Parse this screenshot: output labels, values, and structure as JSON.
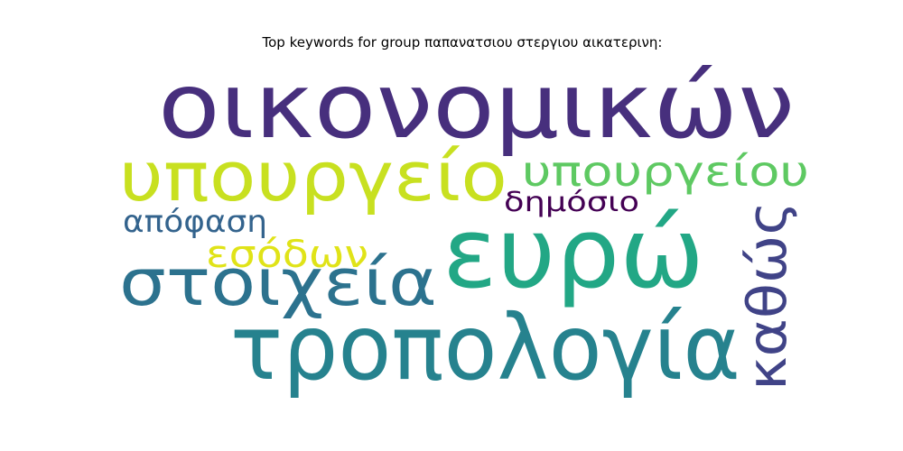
{
  "chart_data": {
    "type": "wordcloud",
    "title": "Top keywords for group παπανατσιου στεργιου αικατερινη:",
    "words": [
      {
        "text": "οικονομικών",
        "weight": 1.0,
        "color": "#472f7d"
      },
      {
        "text": "ευρώ",
        "weight": 0.9,
        "color": "#22a785"
      },
      {
        "text": "τροπολογία",
        "weight": 0.78,
        "color": "#26828e"
      },
      {
        "text": "υπουργείο",
        "weight": 0.62,
        "color": "#c8e020"
      },
      {
        "text": "στοιχεία",
        "weight": 0.6,
        "color": "#2c728e"
      },
      {
        "text": "καθώς",
        "weight": 0.5,
        "color": "#404387"
      },
      {
        "text": "υπουργείου",
        "weight": 0.38,
        "color": "#5ec962"
      },
      {
        "text": "εσόδων",
        "weight": 0.32,
        "color": "#e0e318"
      },
      {
        "text": "απόφαση",
        "weight": 0.28,
        "color": "#33638d"
      },
      {
        "text": "δημόσιο",
        "weight": 0.26,
        "color": "#440154"
      }
    ]
  }
}
